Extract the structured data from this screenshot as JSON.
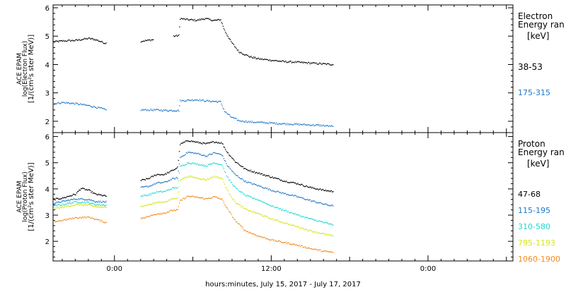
{
  "chart_data": {
    "type": "scatter",
    "xlabel": "hours:minutes, July 15, 2017 - July 17, 2017",
    "x_tick_labels": [
      "0:00",
      "12:00",
      "0:00"
    ],
    "x_unit": "hours from 0:00 July 16, 2017",
    "xlim": [
      -4.7,
      30.5
    ],
    "panels": [
      {
        "ylabel_lines": [
          "ACE EPAM",
          "log(Electron Flux)",
          "[1/(cm²s ster MeV)]"
        ],
        "ylim": [
          1.6,
          6.1
        ],
        "yticks": [
          2,
          3,
          4,
          5,
          6
        ],
        "legend_title": [
          "Electron",
          "Energy ran",
          "[keV]"
        ],
        "series": [
          {
            "name": "38-53",
            "color": "#000000",
            "points": [
              [
                -4.7,
                4.8
              ],
              [
                -4.0,
                4.83
              ],
              [
                -3.0,
                4.85
              ],
              [
                -2.0,
                4.92
              ],
              [
                -1.5,
                4.88
              ],
              [
                -0.8,
                4.76
              ],
              [
                -0.6,
                4.75
              ],
              [
                2.0,
                4.82
              ],
              [
                3.0,
                4.88
              ],
              [
                4.5,
                5.0
              ],
              [
                4.9,
                5.02
              ],
              [
                5.0,
                5.62
              ],
              [
                5.6,
                5.58
              ],
              [
                6.3,
                5.56
              ],
              [
                6.9,
                5.62
              ],
              [
                7.6,
                5.55
              ],
              [
                8.1,
                5.58
              ],
              [
                8.4,
                5.2
              ],
              [
                8.9,
                4.8
              ],
              [
                9.5,
                4.45
              ],
              [
                10.3,
                4.28
              ],
              [
                11.0,
                4.2
              ],
              [
                12.0,
                4.15
              ],
              [
                13.0,
                4.1
              ],
              [
                14.0,
                4.08
              ],
              [
                15.0,
                4.05
              ],
              [
                16.0,
                4.02
              ],
              [
                16.7,
                4.0
              ]
            ]
          },
          {
            "name": "175-315",
            "color": "#1f78c8",
            "points": [
              [
                -4.7,
                2.62
              ],
              [
                -4.0,
                2.66
              ],
              [
                -3.0,
                2.62
              ],
              [
                -2.0,
                2.55
              ],
              [
                -1.0,
                2.45
              ],
              [
                -0.6,
                2.38
              ],
              [
                2.0,
                2.4
              ],
              [
                3.0,
                2.4
              ],
              [
                4.0,
                2.38
              ],
              [
                4.9,
                2.38
              ],
              [
                5.0,
                2.72
              ],
              [
                5.6,
                2.74
              ],
              [
                6.3,
                2.76
              ],
              [
                6.9,
                2.72
              ],
              [
                7.6,
                2.7
              ],
              [
                8.1,
                2.68
              ],
              [
                8.4,
                2.35
              ],
              [
                8.9,
                2.15
              ],
              [
                9.5,
                2.02
              ],
              [
                10.5,
                1.97
              ],
              [
                11.5,
                1.95
              ],
              [
                12.5,
                1.92
              ],
              [
                13.5,
                1.9
              ],
              [
                14.5,
                1.88
              ],
              [
                15.5,
                1.86
              ],
              [
                16.7,
                1.82
              ]
            ]
          }
        ]
      },
      {
        "ylabel_lines": [
          "ACE EPAM",
          "log(Proton Flux)",
          "[1/(cm²s ster MeV)]"
        ],
        "ylim": [
          1.25,
          6.15
        ],
        "yticks": [
          2,
          3,
          4,
          5,
          6
        ],
        "legend_title": [
          "Proton",
          "Energy ran",
          "[keV]"
        ],
        "series": [
          {
            "name": "47-68",
            "color": "#000000",
            "points": [
              [
                -4.7,
                3.6
              ],
              [
                -4.0,
                3.65
              ],
              [
                -3.0,
                3.8
              ],
              [
                -2.6,
                4.02
              ],
              [
                -2.0,
                3.95
              ],
              [
                -1.5,
                3.8
              ],
              [
                -0.6,
                3.72
              ],
              [
                2.0,
                4.32
              ],
              [
                2.6,
                4.4
              ],
              [
                3.2,
                4.55
              ],
              [
                3.8,
                4.55
              ],
              [
                4.4,
                4.7
              ],
              [
                4.8,
                4.82
              ],
              [
                5.0,
                5.7
              ],
              [
                5.6,
                5.85
              ],
              [
                6.3,
                5.78
              ],
              [
                7.0,
                5.72
              ],
              [
                7.6,
                5.8
              ],
              [
                8.2,
                5.75
              ],
              [
                8.6,
                5.4
              ],
              [
                9.2,
                5.05
              ],
              [
                10.0,
                4.75
              ],
              [
                11.0,
                4.6
              ],
              [
                12.0,
                4.45
              ],
              [
                13.0,
                4.3
              ],
              [
                14.0,
                4.2
              ],
              [
                15.0,
                4.05
              ],
              [
                16.0,
                3.95
              ],
              [
                16.7,
                3.9
              ]
            ]
          },
          {
            "name": "115-195",
            "color": "#1f78c8",
            "points": [
              [
                -4.7,
                3.45
              ],
              [
                -4.0,
                3.52
              ],
              [
                -3.0,
                3.62
              ],
              [
                -2.0,
                3.6
              ],
              [
                -1.5,
                3.52
              ],
              [
                -0.6,
                3.5
              ],
              [
                2.0,
                4.05
              ],
              [
                2.6,
                4.1
              ],
              [
                3.2,
                4.22
              ],
              [
                3.8,
                4.25
              ],
              [
                4.4,
                4.38
              ],
              [
                4.8,
                4.42
              ],
              [
                5.0,
                5.2
              ],
              [
                5.6,
                5.4
              ],
              [
                6.3,
                5.35
              ],
              [
                7.0,
                5.25
              ],
              [
                7.6,
                5.38
              ],
              [
                8.2,
                5.3
              ],
              [
                8.6,
                4.9
              ],
              [
                9.2,
                4.55
              ],
              [
                10.0,
                4.28
              ],
              [
                11.0,
                4.12
              ],
              [
                12.0,
                3.95
              ],
              [
                13.0,
                3.82
              ],
              [
                14.0,
                3.7
              ],
              [
                15.0,
                3.55
              ],
              [
                16.0,
                3.42
              ],
              [
                16.7,
                3.35
              ]
            ]
          },
          {
            "name": "310-580",
            "color": "#22d8d0",
            "points": [
              [
                -4.7,
                3.35
              ],
              [
                -4.0,
                3.4
              ],
              [
                -3.0,
                3.5
              ],
              [
                -2.0,
                3.48
              ],
              [
                -1.5,
                3.4
              ],
              [
                -0.6,
                3.38
              ],
              [
                2.0,
                3.72
              ],
              [
                2.6,
                3.78
              ],
              [
                3.2,
                3.88
              ],
              [
                3.8,
                3.9
              ],
              [
                4.4,
                4.02
              ],
              [
                4.8,
                4.05
              ],
              [
                5.0,
                4.85
              ],
              [
                5.6,
                5.0
              ],
              [
                6.3,
                4.95
              ],
              [
                7.0,
                4.88
              ],
              [
                7.6,
                5.0
              ],
              [
                8.2,
                4.92
              ],
              [
                8.6,
                4.45
              ],
              [
                9.2,
                4.05
              ],
              [
                10.0,
                3.75
              ],
              [
                11.0,
                3.58
              ],
              [
                12.0,
                3.35
              ],
              [
                13.0,
                3.18
              ],
              [
                14.0,
                3.0
              ],
              [
                15.0,
                2.85
              ],
              [
                16.0,
                2.72
              ],
              [
                16.7,
                2.62
              ]
            ]
          },
          {
            "name": "795-1193",
            "color": "#d6e41c",
            "points": [
              [
                -4.7,
                3.25
              ],
              [
                -4.0,
                3.3
              ],
              [
                -3.0,
                3.4
              ],
              [
                -2.0,
                3.38
              ],
              [
                -1.5,
                3.32
              ],
              [
                -0.6,
                3.28
              ],
              [
                2.0,
                3.35
              ],
              [
                2.6,
                3.4
              ],
              [
                3.2,
                3.48
              ],
              [
                3.8,
                3.5
              ],
              [
                4.4,
                3.62
              ],
              [
                4.8,
                3.65
              ],
              [
                5.0,
                4.35
              ],
              [
                5.6,
                4.48
              ],
              [
                6.3,
                4.42
              ],
              [
                7.0,
                4.35
              ],
              [
                7.6,
                4.48
              ],
              [
                8.2,
                4.4
              ],
              [
                8.6,
                3.95
              ],
              [
                9.2,
                3.5
              ],
              [
                10.0,
                3.22
              ],
              [
                11.0,
                3.05
              ],
              [
                12.0,
                2.85
              ],
              [
                13.0,
                2.7
              ],
              [
                14.0,
                2.55
              ],
              [
                15.0,
                2.4
              ],
              [
                16.0,
                2.28
              ],
              [
                16.7,
                2.2
              ]
            ]
          },
          {
            "name": "1060-1900",
            "color": "#f28c1e",
            "points": [
              [
                -4.7,
                2.75
              ],
              [
                -4.0,
                2.8
              ],
              [
                -3.0,
                2.9
              ],
              [
                -2.0,
                2.92
              ],
              [
                -1.5,
                2.85
              ],
              [
                -0.6,
                2.7
              ],
              [
                2.0,
                2.88
              ],
              [
                2.6,
                2.95
              ],
              [
                3.2,
                3.05
              ],
              [
                3.8,
                3.08
              ],
              [
                4.4,
                3.18
              ],
              [
                4.8,
                3.2
              ],
              [
                5.0,
                3.55
              ],
              [
                5.6,
                3.72
              ],
              [
                6.3,
                3.68
              ],
              [
                7.0,
                3.62
              ],
              [
                7.6,
                3.7
              ],
              [
                8.2,
                3.6
              ],
              [
                8.6,
                3.25
              ],
              [
                9.2,
                2.8
              ],
              [
                10.0,
                2.4
              ],
              [
                11.0,
                2.2
              ],
              [
                12.0,
                2.05
              ],
              [
                13.0,
                1.95
              ],
              [
                14.0,
                1.85
              ],
              [
                15.0,
                1.72
              ],
              [
                16.0,
                1.62
              ],
              [
                16.7,
                1.58
              ]
            ]
          }
        ]
      }
    ]
  }
}
